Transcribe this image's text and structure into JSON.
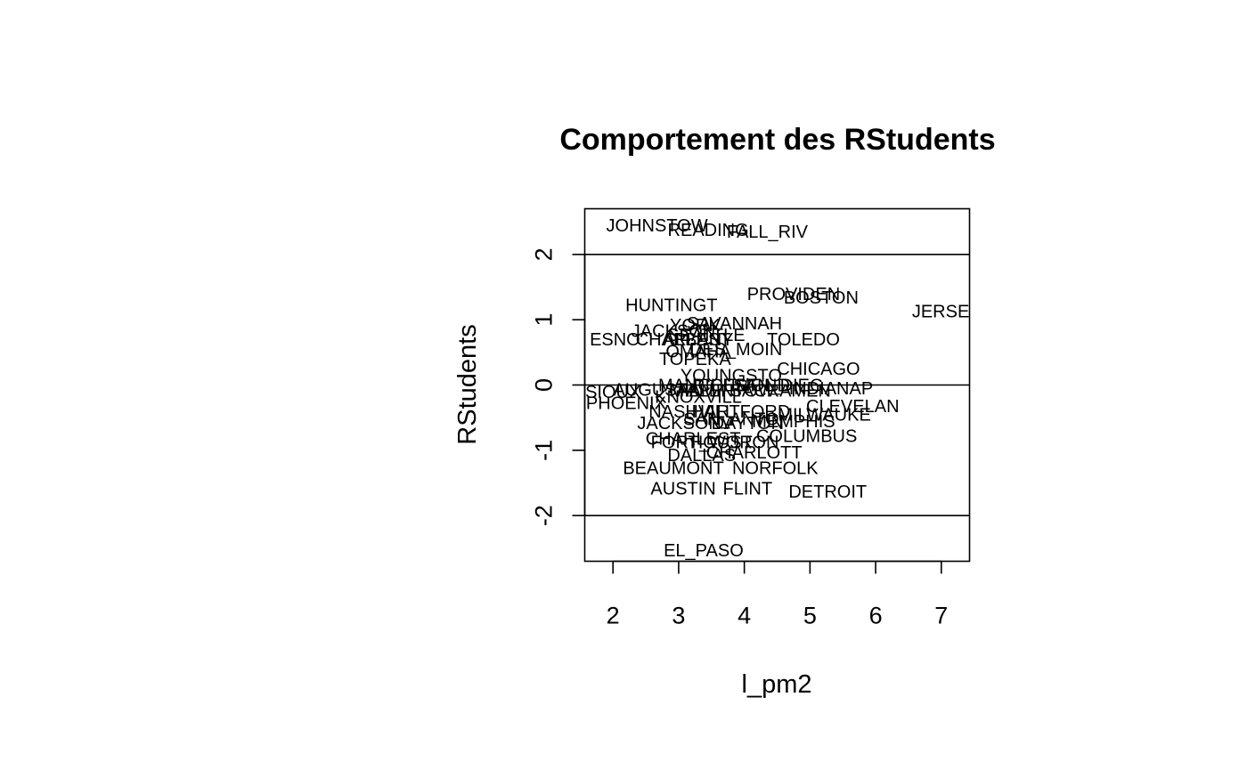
{
  "chart_data": {
    "type": "scatter",
    "title": "Comportement des RStudents",
    "xlabel": "l_pm2",
    "ylabel": "RStudents",
    "xlim": [
      1.57,
      7.43
    ],
    "ylim": [
      -2.7,
      2.7
    ],
    "x_ticks": [
      2,
      3,
      4,
      5,
      6,
      7
    ],
    "y_ticks": [
      -2,
      -1,
      0,
      1,
      2
    ],
    "reference_lines_y": [
      -2,
      0,
      2
    ],
    "grid": false,
    "legend": "none",
    "points": [
      {
        "label": "JOHNSTOW",
        "x": 2.67,
        "y": 2.45
      },
      {
        "label": "READING",
        "x": 3.45,
        "y": 2.38
      },
      {
        "label": "FALL_RIV",
        "x": 4.35,
        "y": 2.35
      },
      {
        "label": "PROVIDEN",
        "x": 4.75,
        "y": 1.4
      },
      {
        "label": "BOSTON",
        "x": 5.17,
        "y": 1.34
      },
      {
        "label": "HUNTINGT",
        "x": 2.89,
        "y": 1.23
      },
      {
        "label": "JERSE",
        "x": 6.99,
        "y": 1.13
      },
      {
        "label": "SAVANNAH",
        "x": 3.85,
        "y": 0.95
      },
      {
        "label": "YORK",
        "x": 3.25,
        "y": 0.92
      },
      {
        "label": "JACKSON",
        "x": 2.92,
        "y": 0.83
      },
      {
        "label": "SEATTLE",
        "x": 3.42,
        "y": 0.77
      },
      {
        "label": "ESNO",
        "x": 2.03,
        "y": 0.7
      },
      {
        "label": "CHARLEST",
        "x": 3.07,
        "y": 0.7
      },
      {
        "label": "ALBANY",
        "x": 3.3,
        "y": 0.7
      },
      {
        "label": "TOLEDO",
        "x": 4.9,
        "y": 0.7
      },
      {
        "label": "OMAHA",
        "x": 3.3,
        "y": 0.52
      },
      {
        "label": "DES_MOIN",
        "x": 3.87,
        "y": 0.55
      },
      {
        "label": "TOPEKA",
        "x": 3.25,
        "y": 0.4
      },
      {
        "label": "YOUNGSTO",
        "x": 3.8,
        "y": 0.15
      },
      {
        "label": "CHICAGO",
        "x": 5.13,
        "y": 0.25
      },
      {
        "label": "MANCHEST",
        "x": 3.45,
        "y": 0.0
      },
      {
        "label": "RICHMOND",
        "x": 3.95,
        "y": 0.0
      },
      {
        "label": "SAN_DIEG",
        "x": 4.52,
        "y": 0.0
      },
      {
        "label": "INDIANAP",
        "x": 5.32,
        "y": -0.05
      },
      {
        "label": "SIOUX",
        "x": 2.0,
        "y": -0.1
      },
      {
        "label": "AUGUSTA",
        "x": 2.65,
        "y": -0.07
      },
      {
        "label": "MIAMI",
        "x": 3.25,
        "y": -0.08
      },
      {
        "label": "ALLENTOW",
        "x": 3.72,
        "y": -0.08
      },
      {
        "label": "SACRAMEN",
        "x": 4.55,
        "y": -0.08
      },
      {
        "label": "KNOXVILL",
        "x": 3.3,
        "y": -0.18
      },
      {
        "label": "PHOENIX",
        "x": 2.2,
        "y": -0.27
      },
      {
        "label": "CLEVELAN",
        "x": 5.65,
        "y": -0.32
      },
      {
        "label": "NASHVILL",
        "x": 3.2,
        "y": -0.4
      },
      {
        "label": "HARTFORD",
        "x": 3.95,
        "y": -0.4
      },
      {
        "label": "MILWAUKE",
        "x": 5.22,
        "y": -0.45
      },
      {
        "label": "SAN_ANTO",
        "x": 3.8,
        "y": -0.52
      },
      {
        "label": "MEMPHIS",
        "x": 4.75,
        "y": -0.55
      },
      {
        "label": "JACKSONV",
        "x": 3.1,
        "y": -0.58
      },
      {
        "label": "DAYTON",
        "x": 4.05,
        "y": -0.58
      },
      {
        "label": "CHARLEST",
        "x": 3.22,
        "y": -0.82
      },
      {
        "label": "COLUMBUS",
        "x": 4.95,
        "y": -0.78
      },
      {
        "label": "FORT_WOR",
        "x": 3.35,
        "y": -0.87
      },
      {
        "label": "HOUSTON",
        "x": 3.85,
        "y": -0.87
      },
      {
        "label": "DALLAS",
        "x": 3.35,
        "y": -1.07
      },
      {
        "label": "CHARLOTT",
        "x": 4.15,
        "y": -1.03
      },
      {
        "label": "BEAUMONT",
        "x": 2.92,
        "y": -1.27
      },
      {
        "label": "NORFOLK",
        "x": 4.47,
        "y": -1.27
      },
      {
        "label": "AUSTIN",
        "x": 3.07,
        "y": -1.58
      },
      {
        "label": "FLINT",
        "x": 4.05,
        "y": -1.58
      },
      {
        "label": "DETROIT",
        "x": 5.27,
        "y": -1.63
      },
      {
        "label": "EL_PASO",
        "x": 3.38,
        "y": -2.53
      }
    ]
  }
}
